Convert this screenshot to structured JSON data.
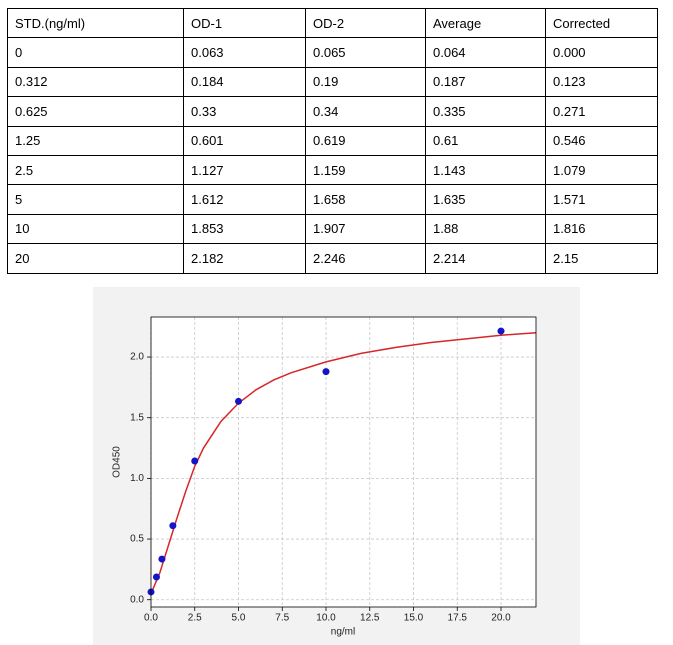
{
  "table": {
    "header": [
      "STD.(ng/ml)",
      "OD-1",
      "OD-2",
      "Average",
      "Corrected"
    ],
    "rows": [
      [
        "0",
        "0.063",
        "0.065",
        "0.064",
        "0.000"
      ],
      [
        "0.312",
        "0.184",
        "0.19",
        "0.187",
        "0.123"
      ],
      [
        "0.625",
        "0.33",
        "0.34",
        "0.335",
        "0.271"
      ],
      [
        "1.25",
        "0.601",
        "0.619",
        "0.61",
        "0.546"
      ],
      [
        "2.5",
        "1.127",
        "1.159",
        "1.143",
        "1.079"
      ],
      [
        "5",
        "1.612",
        "1.658",
        "1.635",
        "1.571"
      ],
      [
        "10",
        "1.853",
        "1.907",
        "1.88",
        "1.816"
      ],
      [
        "20",
        "2.182",
        "2.246",
        "2.214",
        "2.15"
      ]
    ]
  },
  "chart_data": {
    "type": "scatter",
    "x_label": "ng/ml",
    "y_label": "OD450",
    "x": [
      0,
      0.312,
      0.625,
      1.25,
      2.5,
      5,
      10,
      20
    ],
    "values": [
      0.064,
      0.187,
      0.335,
      0.61,
      1.143,
      1.635,
      1.88,
      2.214
    ],
    "color": "#1414c8",
    "fit_curve": {
      "color": "#d62728",
      "x": [
        0,
        0.5,
        1,
        1.5,
        2,
        2.5,
        3,
        4,
        5,
        6,
        7,
        8,
        10,
        12,
        14,
        16,
        18,
        20,
        22
      ],
      "values": [
        0.05,
        0.22,
        0.45,
        0.68,
        0.9,
        1.1,
        1.25,
        1.47,
        1.62,
        1.73,
        1.81,
        1.87,
        1.96,
        2.03,
        2.08,
        2.12,
        2.15,
        2.18,
        2.2
      ]
    },
    "xlim": [
      0,
      22
    ],
    "ylim": [
      -0.06,
      2.33
    ],
    "xticks": [
      {
        "value": 0,
        "label": "0.0"
      },
      {
        "value": 2.5,
        "label": "2.5"
      },
      {
        "value": 5,
        "label": "5.0"
      },
      {
        "value": 7.5,
        "label": "7.5"
      },
      {
        "value": 10,
        "label": "10.0"
      },
      {
        "value": 12.5,
        "label": "12.5"
      },
      {
        "value": 15,
        "label": "15.0"
      },
      {
        "value": 17.5,
        "label": "17.5"
      },
      {
        "value": 20,
        "label": "20.0"
      }
    ],
    "yticks": [
      {
        "value": 0,
        "label": "0.0"
      },
      {
        "value": 0.5,
        "label": "0.5"
      },
      {
        "value": 1,
        "label": "1.0"
      },
      {
        "value": 1.5,
        "label": "1.5"
      },
      {
        "value": 2,
        "label": "2.0"
      }
    ],
    "grid": true
  }
}
